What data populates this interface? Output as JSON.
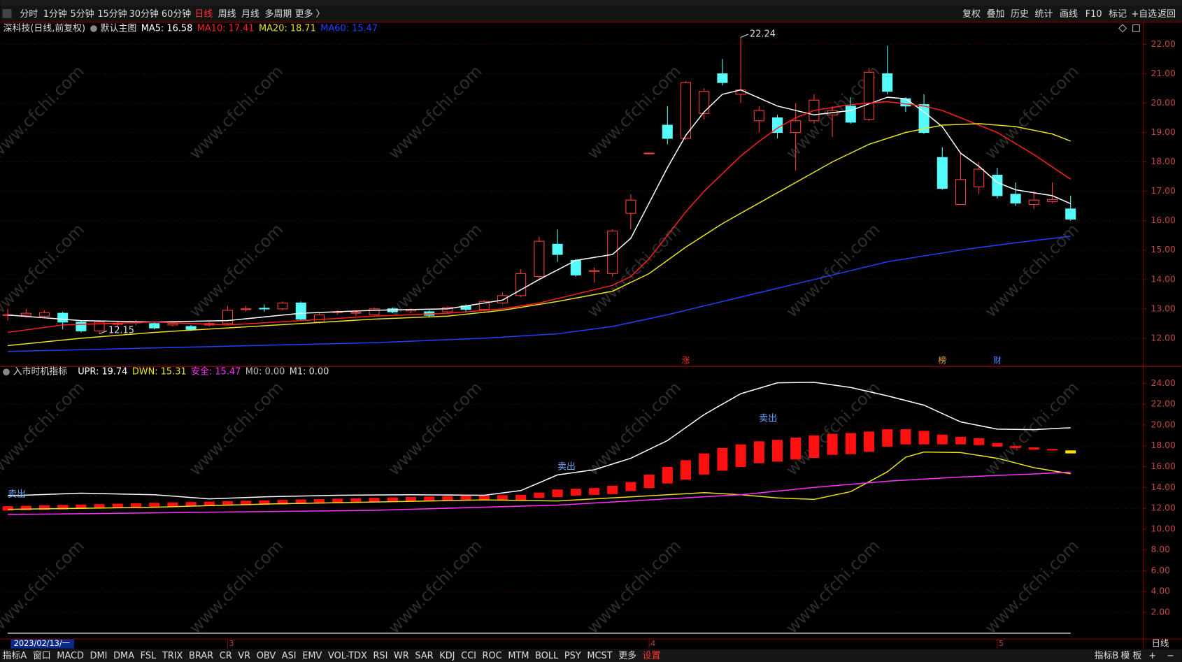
{
  "toolbar": {
    "left": [
      "分时",
      "1分钟",
      "5分钟",
      "15分钟",
      "30分钟",
      "60分钟",
      "日线",
      "周线",
      "月线",
      "多周期",
      "更多 〉"
    ],
    "active_index": 6,
    "right": [
      "复权",
      "叠加",
      "历史",
      "统计",
      "画线",
      "F10",
      "标记",
      "+自选",
      "返回"
    ]
  },
  "bottom_tabs": {
    "left": [
      "指标A",
      "窗口",
      "MACD",
      "DMI",
      "DMA",
      "FSL",
      "TRIX",
      "BRAR",
      "CR",
      "VR",
      "OBV",
      "ASI",
      "EMV",
      "VOL-TDX",
      "RSI",
      "WR",
      "SAR",
      "KDJ",
      "CCI",
      "ROC",
      "MTM",
      "BOLL",
      "PSY",
      "MCST",
      "更多",
      "设置"
    ],
    "highlight_index": 25,
    "right": [
      "指标B",
      "模 板",
      "+",
      "−"
    ]
  },
  "watermark": "www.cfchi.com",
  "chart_data": [
    {
      "type": "candlestick",
      "title": "深科技(日线,前复权)",
      "subtitle": "默认主图",
      "open": [
        12.8,
        12.78,
        12.75,
        12.85,
        12.55,
        12.25,
        12.48,
        12.52,
        12.5,
        12.45,
        12.4,
        12.45,
        12.5,
        13.0,
        13.02,
        13.0,
        13.2,
        12.55,
        12.88,
        12.85,
        12.8,
        13.0,
        12.93,
        12.9,
        12.9,
        13.1,
        12.98,
        13.2,
        13.45,
        14.1,
        15.2,
        14.65,
        14.3,
        14.2,
        16.25,
        18.3,
        19.25,
        18.8,
        19.65,
        21.0,
        20.3,
        19.4,
        19.5,
        19.0,
        19.4,
        19.6,
        19.9,
        19.45,
        21.0,
        20.15,
        19.95,
        18.15,
        16.55,
        17.15,
        17.55,
        16.9,
        16.55,
        16.65,
        16.4
      ],
      "high": [
        13.0,
        13.0,
        12.95,
        12.9,
        12.6,
        12.6,
        12.6,
        12.62,
        12.55,
        12.55,
        12.45,
        12.55,
        13.1,
        13.1,
        13.15,
        13.25,
        13.25,
        12.85,
        12.95,
        12.95,
        13.05,
        13.05,
        13.02,
        12.95,
        13.1,
        13.15,
        13.3,
        13.55,
        14.35,
        15.45,
        15.7,
        14.7,
        14.4,
        15.7,
        16.9,
        18.3,
        19.9,
        20.75,
        20.5,
        21.5,
        22.24,
        19.9,
        19.6,
        20.0,
        20.3,
        19.9,
        20.2,
        21.2,
        21.95,
        20.2,
        20.3,
        18.5,
        18.3,
        18.0,
        17.8,
        17.3,
        17.0,
        17.3,
        16.85
      ],
      "low": [
        12.6,
        12.7,
        12.7,
        12.3,
        12.2,
        12.15,
        12.4,
        12.45,
        12.3,
        12.4,
        12.25,
        12.4,
        12.45,
        12.9,
        12.9,
        12.95,
        12.6,
        12.5,
        12.8,
        12.75,
        12.75,
        12.85,
        12.85,
        12.7,
        12.85,
        12.9,
        12.9,
        13.15,
        13.4,
        14.0,
        14.6,
        14.1,
        13.9,
        14.1,
        15.7,
        18.3,
        18.6,
        18.75,
        19.45,
        20.6,
        20.0,
        19.0,
        18.8,
        17.7,
        19.3,
        18.85,
        19.3,
        19.4,
        20.3,
        19.7,
        18.95,
        17.05,
        16.55,
        16.9,
        16.75,
        16.5,
        16.4,
        16.6,
        16.0
      ],
      "close": [
        12.8,
        12.85,
        12.87,
        12.55,
        12.25,
        12.55,
        12.5,
        12.55,
        12.35,
        12.5,
        12.3,
        12.5,
        12.95,
        13.0,
        13.0,
        13.2,
        12.65,
        12.8,
        12.9,
        12.88,
        13.0,
        12.9,
        12.98,
        12.78,
        13.05,
        12.98,
        13.25,
        13.45,
        14.2,
        15.3,
        14.85,
        14.15,
        14.3,
        15.65,
        16.7,
        18.3,
        18.8,
        20.7,
        20.4,
        20.7,
        20.45,
        19.75,
        19.0,
        19.4,
        20.1,
        19.75,
        19.35,
        21.05,
        20.4,
        19.9,
        19.0,
        17.1,
        17.4,
        17.75,
        16.85,
        16.6,
        16.7,
        16.72,
        16.05
      ],
      "up_color": "#ff3c3c",
      "down_color": "#54fcfc",
      "series": [
        {
          "name": "MA5: 16.58",
          "color": "#ffffff",
          "x": [
            0,
            4,
            8,
            12,
            16,
            20,
            24,
            27,
            29,
            31,
            33,
            34,
            35,
            36,
            37,
            38,
            39,
            40,
            42,
            44,
            46,
            48,
            49,
            50,
            51,
            52,
            53,
            54,
            55,
            56,
            57,
            58
          ],
          "values": [
            12.79,
            12.6,
            12.55,
            12.6,
            12.85,
            12.95,
            13.0,
            13.3,
            14.0,
            14.65,
            14.85,
            15.4,
            16.6,
            17.8,
            18.9,
            19.7,
            20.3,
            20.45,
            19.9,
            19.6,
            19.75,
            20.2,
            20.15,
            19.7,
            19.2,
            18.3,
            17.85,
            17.3,
            17.05,
            16.95,
            16.85,
            16.58
          ]
        },
        {
          "name": "MA10: 17.41",
          "color": "#ff2020",
          "x": [
            0,
            3,
            8,
            12,
            16,
            20,
            24,
            27,
            29,
            31,
            33,
            34,
            35,
            36,
            37,
            38,
            39,
            40,
            41,
            42,
            43,
            44,
            46,
            48,
            50,
            51,
            52,
            54,
            56,
            58
          ],
          "values": [
            12.2,
            12.45,
            12.55,
            12.45,
            12.6,
            12.75,
            12.85,
            13.0,
            13.2,
            13.5,
            13.8,
            14.1,
            14.7,
            15.5,
            16.3,
            17.0,
            17.6,
            18.2,
            18.7,
            19.15,
            19.5,
            19.75,
            19.95,
            20.05,
            19.9,
            19.75,
            19.5,
            19.0,
            18.25,
            17.41
          ]
        },
        {
          "name": "MA20: 18.71",
          "color": "#e8e020",
          "x": [
            0,
            4,
            8,
            12,
            16,
            20,
            24,
            27,
            30,
            33,
            35,
            37,
            39,
            41,
            43,
            45,
            47,
            49,
            51,
            53,
            55,
            57,
            58
          ],
          "values": [
            11.75,
            12.0,
            12.2,
            12.35,
            12.5,
            12.65,
            12.75,
            12.95,
            13.25,
            13.6,
            14.2,
            15.1,
            15.9,
            16.6,
            17.3,
            18.0,
            18.6,
            19.0,
            19.25,
            19.3,
            19.2,
            18.95,
            18.71
          ]
        },
        {
          "name": "MA60: 15.47",
          "color": "#2040ff",
          "x": [
            0,
            10,
            20,
            26,
            30,
            33,
            36,
            40,
            44,
            48,
            52,
            55,
            58
          ],
          "values": [
            11.55,
            11.7,
            11.85,
            12.0,
            12.15,
            12.4,
            12.8,
            13.4,
            14.0,
            14.6,
            15.0,
            15.25,
            15.47
          ]
        }
      ],
      "annotations": [
        {
          "x": 40,
          "y": 22.24
        },
        {
          "x": 5,
          "y": 12.15
        }
      ],
      "markers": [
        {
          "text": "涨",
          "x": 37,
          "color": "#ff3030"
        },
        {
          "text": "榜",
          "x": 51,
          "color": "#e8a040"
        },
        {
          "text": "财",
          "x": 54,
          "color": "#4a86ff"
        }
      ],
      "xlim": [
        -0.41,
        61.97
      ],
      "ylim": [
        11.08,
        22.74
      ],
      "yticks": [
        {
          "value": 12,
          "label": "12.00"
        },
        {
          "value": 13,
          "label": "13.00"
        },
        {
          "value": 14,
          "label": "14.00"
        },
        {
          "value": 15,
          "label": "15.00"
        },
        {
          "value": 16,
          "label": "16.00"
        },
        {
          "value": 17,
          "label": "17.00"
        },
        {
          "value": 18,
          "label": "18.00"
        },
        {
          "value": 19,
          "label": "19.00"
        },
        {
          "value": 20,
          "label": "20.00"
        },
        {
          "value": 21,
          "label": "21.00"
        },
        {
          "value": 22,
          "label": "22.00"
        }
      ],
      "grid": true
    },
    {
      "type": "band",
      "title": "入市时机指标",
      "series": [
        {
          "name": "UPR: 19.74",
          "color": "#ffffff",
          "x": [
            0,
            4,
            8,
            11,
            14,
            18,
            22,
            26,
            28,
            30,
            32,
            34,
            36,
            38,
            40,
            42,
            44,
            46,
            48,
            50,
            52,
            54,
            56,
            58
          ],
          "values": [
            13.2,
            13.45,
            13.3,
            12.9,
            13.1,
            13.25,
            13.3,
            13.25,
            13.7,
            15.2,
            15.7,
            16.8,
            18.5,
            21.0,
            23.0,
            24.05,
            24.1,
            23.6,
            22.8,
            21.9,
            20.3,
            19.6,
            19.55,
            19.74
          ]
        },
        {
          "name": "DWN: 15.31",
          "color": "#e8e020",
          "x": [
            0,
            8,
            14,
            20,
            26,
            30,
            34,
            38,
            40,
            42,
            44,
            46,
            48,
            49,
            50,
            52,
            54,
            56,
            58
          ],
          "values": [
            11.9,
            12.1,
            12.4,
            12.6,
            12.8,
            12.7,
            13.1,
            13.5,
            13.3,
            13.0,
            12.85,
            13.6,
            15.5,
            16.9,
            17.4,
            17.35,
            16.8,
            15.9,
            15.31
          ]
        },
        {
          "name": "安全: 15.47",
          "color": "#ff30ff",
          "x": [
            0,
            10,
            20,
            30,
            36,
            40,
            44,
            48,
            52,
            56,
            58
          ],
          "values": [
            11.4,
            11.6,
            11.8,
            12.3,
            12.9,
            13.3,
            14.0,
            14.6,
            15.0,
            15.3,
            15.47
          ]
        },
        {
          "name": "M0: 0.00",
          "color": "#bbbbbb",
          "x": [
            0,
            58
          ],
          "values": [
            0,
            0
          ]
        },
        {
          "name": "M1: 0.00",
          "color": "#dddddd",
          "x": [
            0,
            58
          ],
          "values": [
            0,
            0
          ]
        }
      ],
      "bars": {
        "color": "#ff1010",
        "last_color": "#ffe000",
        "high": [
          12.2,
          12.24,
          12.28,
          12.32,
          12.36,
          12.4,
          12.44,
          12.48,
          12.52,
          12.56,
          12.6,
          12.64,
          12.68,
          12.72,
          12.76,
          12.8,
          12.84,
          12.88,
          12.92,
          12.96,
          13.0,
          13.04,
          13.08,
          13.12,
          13.16,
          13.2,
          13.23,
          13.26,
          13.29,
          13.5,
          13.8,
          13.87,
          13.94,
          14.16,
          14.52,
          15.24,
          15.97,
          16.62,
          17.27,
          17.78,
          18.14,
          18.43,
          18.57,
          18.79,
          19.0,
          19.15,
          19.22,
          19.37,
          19.59,
          19.59,
          19.44,
          19.08,
          18.86,
          18.72,
          18.28,
          17.99,
          17.85,
          17.7,
          17.56
        ],
        "low": [
          11.77,
          11.81,
          11.85,
          11.89,
          11.93,
          11.97,
          12.01,
          12.05,
          12.09,
          12.13,
          12.17,
          12.21,
          12.25,
          12.29,
          12.33,
          12.37,
          12.41,
          12.45,
          12.49,
          12.53,
          12.57,
          12.61,
          12.65,
          12.69,
          12.72,
          12.74,
          12.76,
          12.77,
          12.78,
          13.0,
          13.07,
          13.22,
          13.29,
          13.36,
          13.65,
          13.94,
          14.38,
          14.74,
          15.24,
          15.61,
          15.97,
          16.33,
          16.47,
          16.69,
          16.84,
          17.13,
          17.2,
          17.42,
          17.92,
          18.14,
          18.14,
          18.14,
          18.14,
          18.07,
          17.92,
          17.78,
          17.63,
          17.56,
          17.27
        ]
      },
      "annotations": [
        {
          "text": "卖出",
          "x": 0,
          "y": 13.3
        },
        {
          "text": "卖出",
          "x": 30,
          "y": 15.97
        },
        {
          "text": "卖出",
          "x": 41,
          "y": 20.6
        }
      ],
      "xlim": [
        -0.41,
        61.97
      ],
      "ylim": [
        -0.67,
        25.52
      ],
      "yticks": [
        {
          "value": 2,
          "label": "2.00"
        },
        {
          "value": 4,
          "label": "4.00"
        },
        {
          "value": 6,
          "label": "6.00"
        },
        {
          "value": 8,
          "label": "8.00"
        },
        {
          "value": 10,
          "label": "10.00"
        },
        {
          "value": 12,
          "label": "12.00"
        },
        {
          "value": 14,
          "label": "14.00"
        },
        {
          "value": 16,
          "label": "16.00"
        },
        {
          "value": 18,
          "label": "18.00"
        },
        {
          "value": 20,
          "label": "20.00"
        },
        {
          "value": 22,
          "label": "22.00"
        },
        {
          "value": 24,
          "label": "24.00"
        }
      ],
      "xticks": [
        {
          "value": 12,
          "label": "3"
        },
        {
          "value": 35,
          "label": "4"
        },
        {
          "value": 54,
          "label": "5"
        }
      ],
      "cursor_label": "2023/02/13/一",
      "period_label": "日线",
      "grid": true
    }
  ]
}
